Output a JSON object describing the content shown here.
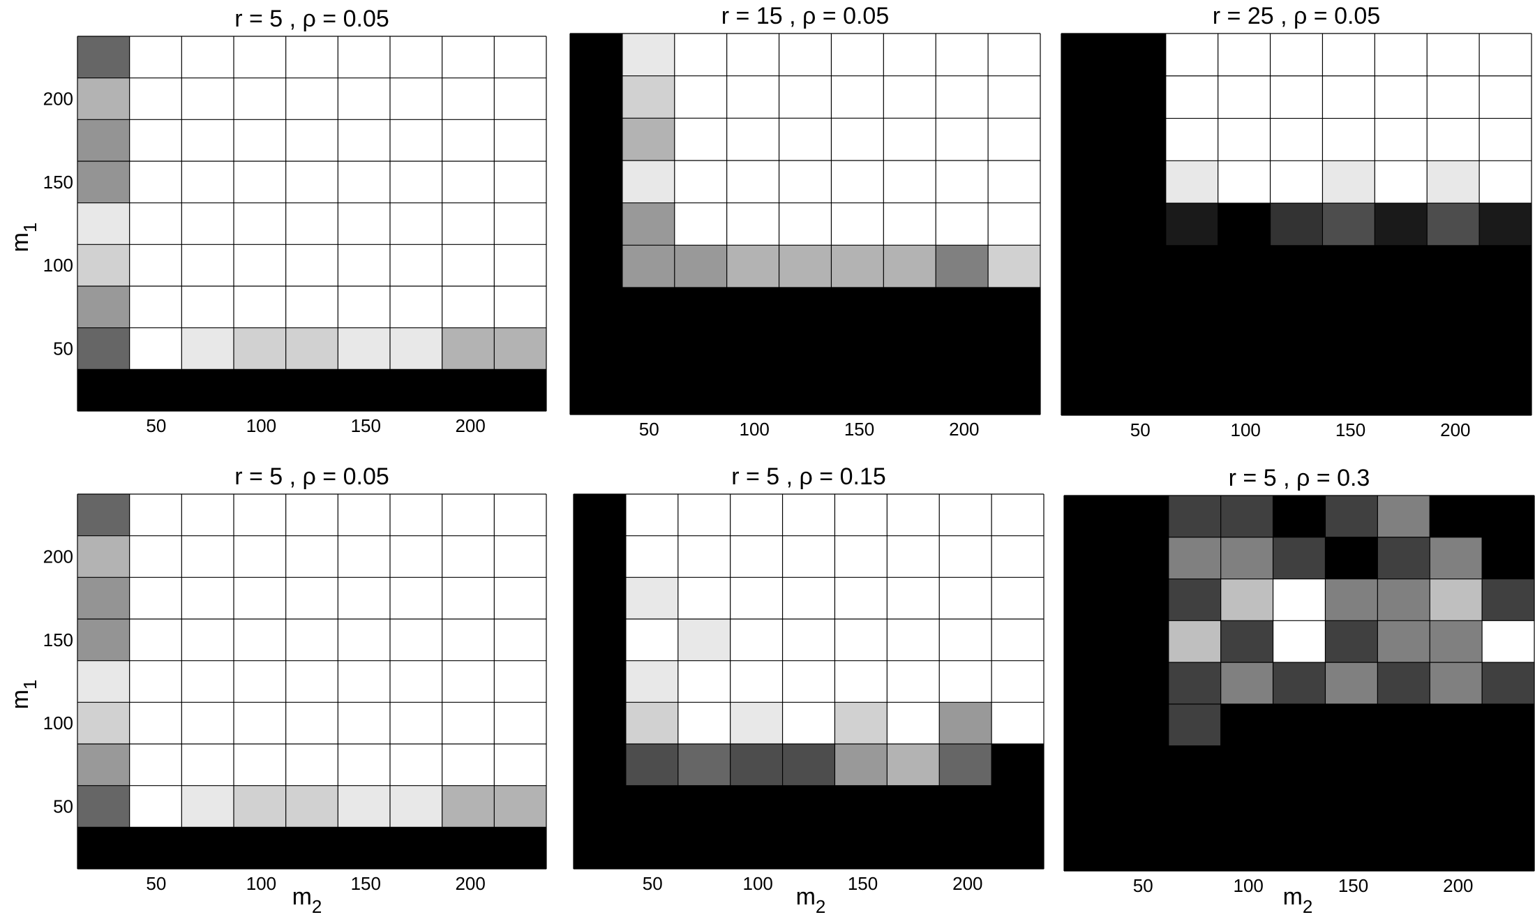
{
  "figure": {
    "ylabel": "m",
    "ylabel_sub": "1",
    "xlabel": "m",
    "xlabel_sub": "2"
  },
  "chart_data": [
    {
      "type": "heatmap",
      "title": "r = 5 , ρ = 0.05",
      "x_ticks": [
        "50",
        "100",
        "150",
        "200"
      ],
      "y_ticks": [
        "200",
        "150",
        "100",
        "50"
      ],
      "grid": true,
      "rows": 9,
      "cols": 9,
      "cells": [
        [
          0.4,
          1,
          1,
          1,
          1,
          1,
          1,
          1,
          1
        ],
        [
          0.7,
          1,
          1,
          1,
          1,
          1,
          1,
          1,
          1
        ],
        [
          0.58,
          1,
          1,
          1,
          1,
          1,
          1,
          1,
          1
        ],
        [
          0.58,
          1,
          1,
          1,
          1,
          1,
          1,
          1,
          1
        ],
        [
          0.91,
          1,
          1,
          1,
          1,
          1,
          1,
          1,
          1
        ],
        [
          0.82,
          1,
          1,
          1,
          1,
          1,
          1,
          1,
          1
        ],
        [
          0.6,
          1,
          1,
          1,
          1,
          1,
          1,
          1,
          1
        ],
        [
          0.4,
          1,
          0.91,
          0.82,
          0.82,
          0.91,
          0.91,
          0.7,
          0.7
        ],
        [
          0,
          0,
          0,
          0,
          0,
          0,
          0,
          0,
          0
        ]
      ]
    },
    {
      "type": "heatmap",
      "title": "r = 15 , ρ = 0.05",
      "x_ticks": [
        "50",
        "100",
        "150",
        "200"
      ],
      "y_ticks": [],
      "grid": true,
      "rows": 9,
      "cols": 9,
      "cells": [
        [
          0,
          0.91,
          1,
          1,
          1,
          1,
          1,
          1,
          1
        ],
        [
          0,
          0.82,
          1,
          1,
          1,
          1,
          1,
          1,
          1
        ],
        [
          0,
          0.7,
          1,
          1,
          1,
          1,
          1,
          1,
          1
        ],
        [
          0,
          0.91,
          1,
          1,
          1,
          1,
          1,
          1,
          1
        ],
        [
          0,
          0.6,
          1,
          1,
          1,
          1,
          1,
          1,
          1
        ],
        [
          0,
          0.6,
          0.6,
          0.7,
          0.7,
          0.7,
          0.7,
          0.5,
          0.82
        ],
        [
          0,
          0,
          0,
          0,
          0,
          0,
          0,
          0,
          0
        ],
        [
          0,
          0,
          0,
          0,
          0,
          0,
          0,
          0,
          0
        ],
        [
          0,
          0,
          0,
          0,
          0,
          0,
          0,
          0,
          0
        ]
      ]
    },
    {
      "type": "heatmap",
      "title": "r = 25 , ρ = 0.05",
      "x_ticks": [
        "50",
        "100",
        "150",
        "200"
      ],
      "y_ticks": [],
      "grid": true,
      "rows": 9,
      "cols": 9,
      "cells": [
        [
          0,
          0,
          1,
          1,
          1,
          1,
          1,
          1,
          1
        ],
        [
          0,
          0,
          1,
          1,
          1,
          1,
          1,
          1,
          1
        ],
        [
          0,
          0,
          1,
          1,
          1,
          1,
          1,
          1,
          1
        ],
        [
          0,
          0,
          0.91,
          1,
          1,
          0.91,
          1,
          0.91,
          1
        ],
        [
          0,
          0,
          0.1,
          0,
          0.2,
          0.3,
          0.1,
          0.3,
          0.1
        ],
        [
          0,
          0,
          0,
          0,
          0,
          0,
          0,
          0,
          0
        ],
        [
          0,
          0,
          0,
          0,
          0,
          0,
          0,
          0,
          0
        ],
        [
          0,
          0,
          0,
          0,
          0,
          0,
          0,
          0,
          0
        ],
        [
          0,
          0,
          0,
          0,
          0,
          0,
          0,
          0,
          0
        ]
      ]
    },
    {
      "type": "heatmap",
      "title": "r = 5 , ρ = 0.05",
      "x_ticks": [
        "50",
        "100",
        "150",
        "200"
      ],
      "y_ticks": [
        "200",
        "150",
        "100",
        "50"
      ],
      "grid": true,
      "rows": 9,
      "cols": 9,
      "cells": [
        [
          0.4,
          1,
          1,
          1,
          1,
          1,
          1,
          1,
          1
        ],
        [
          0.7,
          1,
          1,
          1,
          1,
          1,
          1,
          1,
          1
        ],
        [
          0.58,
          1,
          1,
          1,
          1,
          1,
          1,
          1,
          1
        ],
        [
          0.58,
          1,
          1,
          1,
          1,
          1,
          1,
          1,
          1
        ],
        [
          0.91,
          1,
          1,
          1,
          1,
          1,
          1,
          1,
          1
        ],
        [
          0.82,
          1,
          1,
          1,
          1,
          1,
          1,
          1,
          1
        ],
        [
          0.6,
          1,
          1,
          1,
          1,
          1,
          1,
          1,
          1
        ],
        [
          0.4,
          1,
          0.91,
          0.82,
          0.82,
          0.91,
          0.91,
          0.7,
          0.7
        ],
        [
          0,
          0,
          0,
          0,
          0,
          0,
          0,
          0,
          0
        ]
      ]
    },
    {
      "type": "heatmap",
      "title": "r = 5 , ρ = 0.15",
      "x_ticks": [
        "50",
        "100",
        "150",
        "200"
      ],
      "y_ticks": [],
      "grid": true,
      "rows": 9,
      "cols": 9,
      "cells": [
        [
          0,
          1,
          1,
          1,
          1,
          1,
          1,
          1,
          1
        ],
        [
          0,
          1,
          1,
          1,
          1,
          1,
          1,
          1,
          1
        ],
        [
          0,
          0.91,
          1,
          1,
          1,
          1,
          1,
          1,
          1
        ],
        [
          0,
          1,
          0.91,
          1,
          1,
          1,
          1,
          1,
          1
        ],
        [
          0,
          0.91,
          1,
          1,
          1,
          1,
          1,
          1,
          1
        ],
        [
          0,
          0.82,
          1,
          0.91,
          1,
          0.82,
          1,
          0.6,
          1
        ],
        [
          0,
          0.3,
          0.4,
          0.3,
          0.3,
          0.6,
          0.7,
          0.4,
          0
        ],
        [
          0,
          0,
          0,
          0,
          0,
          0,
          0,
          0,
          0
        ],
        [
          0,
          0,
          0,
          0,
          0,
          0,
          0,
          0,
          0
        ]
      ]
    },
    {
      "type": "heatmap",
      "title": "r = 5 , ρ = 0.3",
      "x_ticks": [
        "50",
        "100",
        "150",
        "200"
      ],
      "y_ticks": [],
      "grid": true,
      "rows": 9,
      "cols": 9,
      "cells": [
        [
          0,
          0,
          0.25,
          0.25,
          0,
          0.25,
          0.5,
          0,
          0
        ],
        [
          0,
          0,
          0.5,
          0.5,
          0.25,
          0,
          0.25,
          0.5,
          0
        ],
        [
          0,
          0,
          0.25,
          0.75,
          1,
          0.5,
          0.5,
          0.75,
          0.25
        ],
        [
          0,
          0,
          0.75,
          0.25,
          1,
          0.25,
          0.5,
          0.5,
          1
        ],
        [
          0,
          0,
          0.25,
          0.5,
          0.25,
          0.5,
          0.25,
          0.5,
          0.25
        ],
        [
          0,
          0,
          0.25,
          0,
          0,
          0,
          0,
          0,
          0
        ],
        [
          0,
          0,
          0,
          0,
          0,
          0,
          0,
          0,
          0
        ],
        [
          0,
          0,
          0,
          0,
          0,
          0,
          0,
          0,
          0
        ],
        [
          0,
          0,
          0,
          0,
          0,
          0,
          0,
          0,
          0
        ]
      ]
    }
  ]
}
